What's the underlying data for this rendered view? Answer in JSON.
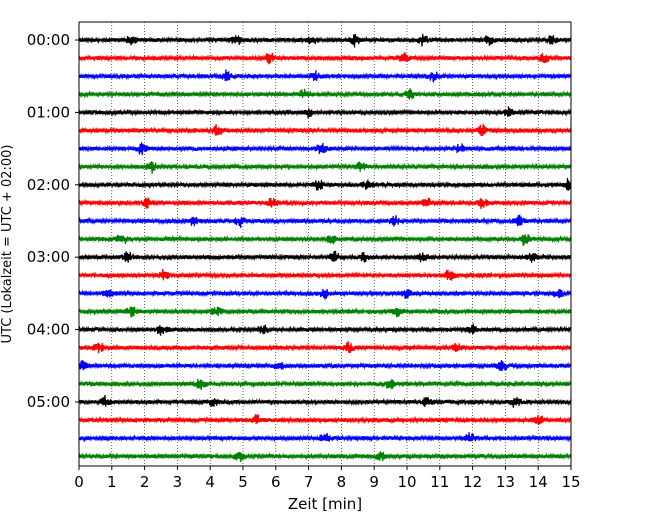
{
  "chart_data": {
    "type": "line",
    "subtype": "seismic-helicorder",
    "xlabel": "Zeit  [min]",
    "ylabel": "UTC (Lokalzeit = UTC + 02:00)",
    "xlim": [
      0,
      15
    ],
    "x_ticks": [
      "0",
      "1",
      "2",
      "3",
      "4",
      "5",
      "6",
      "7",
      "8",
      "9",
      "10",
      "11",
      "12",
      "13",
      "14",
      "15"
    ],
    "y_tick_labels": [
      {
        "row": 0,
        "label": "00:00"
      },
      {
        "row": 4,
        "label": "01:00"
      },
      {
        "row": 8,
        "label": "02:00"
      },
      {
        "row": 12,
        "label": "03:00"
      },
      {
        "row": 16,
        "label": "04:00"
      },
      {
        "row": 20,
        "label": "05:00"
      }
    ],
    "rows": 24,
    "row_minutes": 15,
    "color_cycle": [
      "#000000",
      "#ff0000",
      "#0000ff",
      "#008000"
    ],
    "grid": "vertical-dotted",
    "bursts": [
      [
        1.6,
        4.8,
        7.1,
        8.4,
        10.5,
        12.5,
        14.4
      ],
      [
        5.8,
        9.9,
        14.2
      ],
      [
        4.5,
        7.2,
        10.8
      ],
      [
        6.9,
        10.1
      ],
      [
        7.0,
        13.1
      ],
      [
        4.2,
        12.3
      ],
      [
        1.9,
        7.4,
        11.6
      ],
      [
        2.2,
        8.6
      ],
      [
        7.3,
        8.8,
        14.9
      ],
      [
        2.1,
        5.9,
        10.6,
        12.3
      ],
      [
        3.5,
        4.9,
        9.6,
        13.4
      ],
      [
        1.3,
        7.7,
        13.6
      ],
      [
        1.5,
        7.8,
        8.7,
        10.5,
        13.8
      ],
      [
        2.6,
        11.3
      ],
      [
        0.9,
        7.5,
        10.0,
        14.6
      ],
      [
        1.6,
        4.2,
        9.7
      ],
      [
        2.5,
        5.6,
        12.0
      ],
      [
        0.6,
        8.2,
        11.5
      ],
      [
        0.1,
        6.1,
        12.9
      ],
      [
        3.7,
        9.5
      ],
      [
        0.8,
        4.1,
        10.6,
        13.3
      ],
      [
        5.4,
        14.0
      ],
      [
        7.5,
        11.9
      ],
      [
        4.9,
        9.2
      ]
    ]
  }
}
